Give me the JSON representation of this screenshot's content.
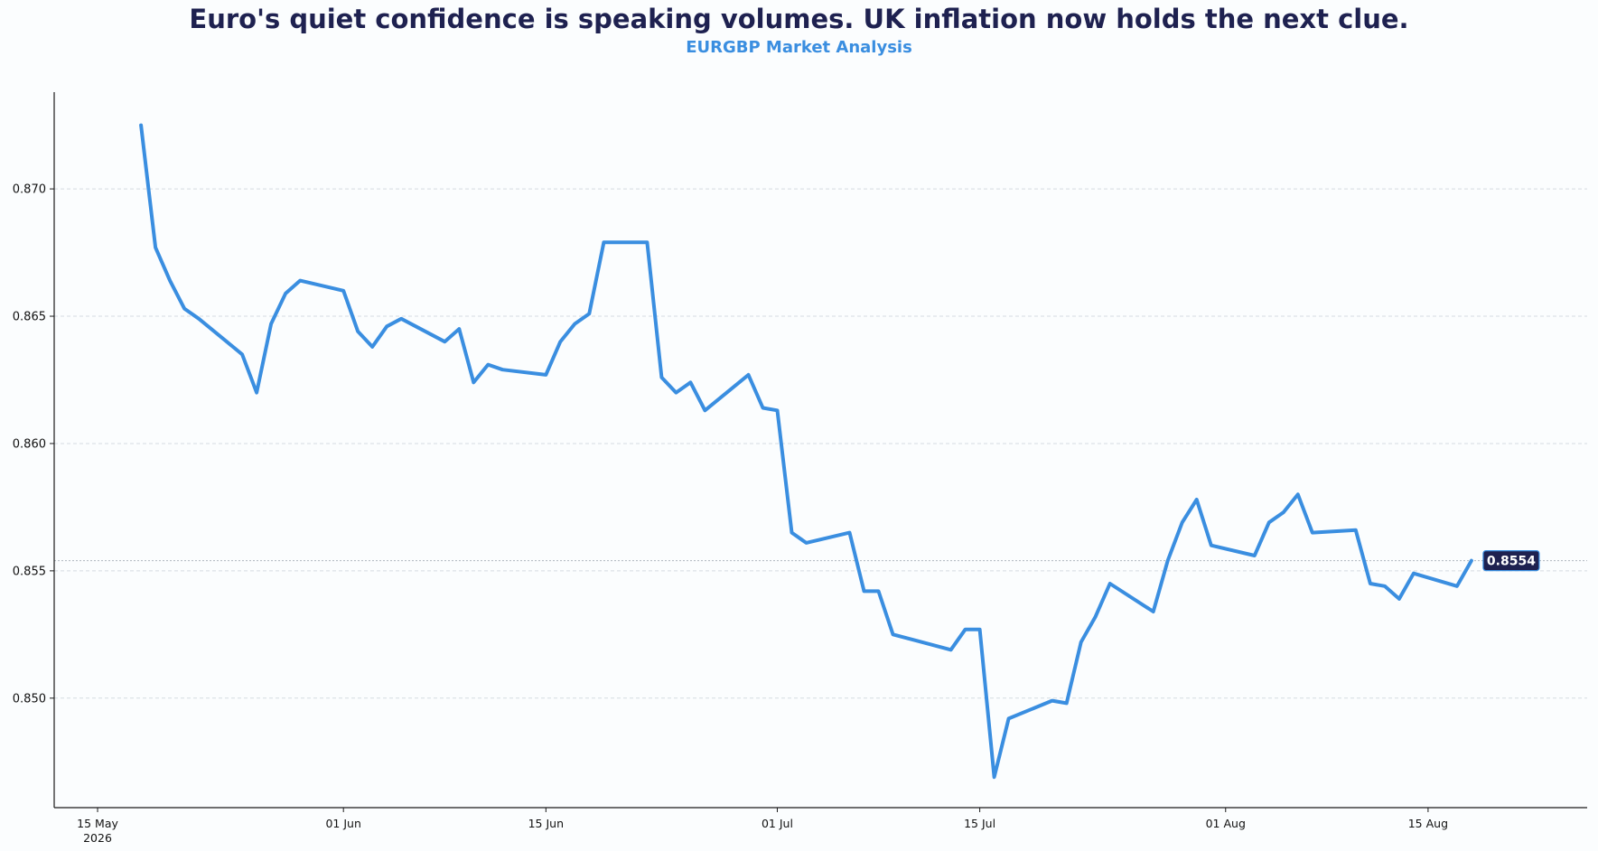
{
  "chart_data": {
    "type": "line",
    "title": "Euro's quiet confidence is speaking volumes. UK inflation now holds the next clue.",
    "subtitle": "EURGBP Market Analysis",
    "xlabel": "",
    "ylabel": "",
    "ylim": [
      0.8457,
      0.8738
    ],
    "xlim": [
      "2026-05-12",
      "2026-08-26"
    ],
    "y_ticks": [
      "0.850",
      "0.855",
      "0.860",
      "0.865",
      "0.870"
    ],
    "x_ticks": [
      {
        "date": "2026-05-15",
        "label": "15 May",
        "sublabel": "2026"
      },
      {
        "date": "2026-06-01",
        "label": "01 Jun",
        "sublabel": ""
      },
      {
        "date": "2026-06-15",
        "label": "15 Jun",
        "sublabel": ""
      },
      {
        "date": "2026-07-01",
        "label": "01 Jul",
        "sublabel": ""
      },
      {
        "date": "2026-07-15",
        "label": "15 Jul",
        "sublabel": ""
      },
      {
        "date": "2026-08-01",
        "label": "01 Aug",
        "sublabel": ""
      },
      {
        "date": "2026-08-15",
        "label": "15 Aug",
        "sublabel": ""
      }
    ],
    "grid": "horizontal dashed",
    "last_value_label": "0.8554",
    "reference_line": 0.8554,
    "colors": {
      "line": "#3a8ee0",
      "title": "#1e2150",
      "subtitle": "#3a8ee0",
      "badge_bg": "#1e2150",
      "badge_text": "#ffffff",
      "grid": "#d5dbe1",
      "axis": "#1a1a1a"
    },
    "series": [
      {
        "points": [
          [
            "2026-05-18",
            0.8725
          ],
          [
            "2026-05-19",
            0.8677
          ],
          [
            "2026-05-20",
            0.8664
          ],
          [
            "2026-05-21",
            0.8653
          ],
          [
            "2026-05-22",
            0.8649
          ],
          [
            "2026-05-25",
            0.8635
          ],
          [
            "2026-05-26",
            0.862
          ],
          [
            "2026-05-27",
            0.8647
          ],
          [
            "2026-05-28",
            0.8659
          ],
          [
            "2026-05-29",
            0.8664
          ],
          [
            "2026-06-01",
            0.866
          ],
          [
            "2026-06-02",
            0.8644
          ],
          [
            "2026-06-03",
            0.8638
          ],
          [
            "2026-06-04",
            0.8646
          ],
          [
            "2026-06-05",
            0.8649
          ],
          [
            "2026-06-08",
            0.864
          ],
          [
            "2026-06-09",
            0.8645
          ],
          [
            "2026-06-10",
            0.8624
          ],
          [
            "2026-06-11",
            0.8631
          ],
          [
            "2026-06-12",
            0.8629
          ],
          [
            "2026-06-15",
            0.8627
          ],
          [
            "2026-06-16",
            0.864
          ],
          [
            "2026-06-17",
            0.8647
          ],
          [
            "2026-06-18",
            0.8651
          ],
          [
            "2026-06-19",
            0.8679
          ],
          [
            "2026-06-22",
            0.8679
          ],
          [
            "2026-06-23",
            0.8626
          ],
          [
            "2026-06-24",
            0.862
          ],
          [
            "2026-06-25",
            0.8624
          ],
          [
            "2026-06-26",
            0.8613
          ],
          [
            "2026-06-29",
            0.8627
          ],
          [
            "2026-06-30",
            0.8614
          ],
          [
            "2026-07-01",
            0.8613
          ],
          [
            "2026-07-02",
            0.8565
          ],
          [
            "2026-07-03",
            0.8561
          ],
          [
            "2026-07-06",
            0.8565
          ],
          [
            "2026-07-07",
            0.8542
          ],
          [
            "2026-07-08",
            0.8542
          ],
          [
            "2026-07-09",
            0.8525
          ],
          [
            "2026-07-13",
            0.8519
          ],
          [
            "2026-07-14",
            0.8527
          ],
          [
            "2026-07-15",
            0.8527
          ],
          [
            "2026-07-16",
            0.8469
          ],
          [
            "2026-07-17",
            0.8492
          ],
          [
            "2026-07-20",
            0.8499
          ],
          [
            "2026-07-21",
            0.8498
          ],
          [
            "2026-07-22",
            0.8522
          ],
          [
            "2026-07-23",
            0.8532
          ],
          [
            "2026-07-24",
            0.8545
          ],
          [
            "2026-07-27",
            0.8534
          ],
          [
            "2026-07-28",
            0.8554
          ],
          [
            "2026-07-29",
            0.8569
          ],
          [
            "2026-07-30",
            0.8578
          ],
          [
            "2026-07-31",
            0.856
          ],
          [
            "2026-08-03",
            0.8556
          ],
          [
            "2026-08-04",
            0.8569
          ],
          [
            "2026-08-05",
            0.8573
          ],
          [
            "2026-08-06",
            0.858
          ],
          [
            "2026-08-07",
            0.8565
          ],
          [
            "2026-08-10",
            0.8566
          ],
          [
            "2026-08-11",
            0.8545
          ],
          [
            "2026-08-12",
            0.8544
          ],
          [
            "2026-08-13",
            0.8539
          ],
          [
            "2026-08-14",
            0.8549
          ],
          [
            "2026-08-17",
            0.8544
          ],
          [
            "2026-08-18",
            0.8554
          ]
        ]
      }
    ]
  }
}
